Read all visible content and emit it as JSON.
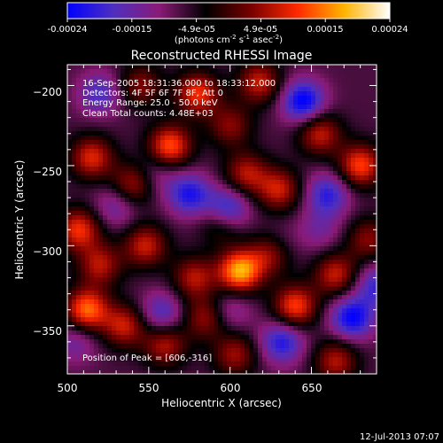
{
  "colorbar": {
    "ticks": [
      "-0.00024",
      "-0.00015",
      "-4.9e-05",
      "4.9e-05",
      "0.00015",
      "0.00024"
    ],
    "units_prefix": "(photons cm",
    "units_sup1": "-2",
    "units_mid1": " s",
    "units_sup2": "-1",
    "units_mid2": " asec",
    "units_sup3": "-2",
    "units_suffix": ")",
    "gradient": [
      "#0000ff",
      "#4f2fbf",
      "#8a1a76",
      "#000000",
      "#7a0000",
      "#ff2a00",
      "#ffb300",
      "#ffffff"
    ]
  },
  "title": "Reconstructed RHESSI Image",
  "info_lines": [
    "16-Sep-2005 18:31:36.000 to 18:33:12.000",
    "Detectors: 4F 5F 6F 7F 8F, Att 0",
    "Energy Range: 25.0 - 50.0 keV",
    "Clean    Total counts: 4.48E+03"
  ],
  "peak_label": "Position of Peak = [606,-316]",
  "footer_date": "12-Jul-2013 07:07",
  "chart_data": {
    "type": "heatmap",
    "title": "Reconstructed RHESSI Image",
    "xlabel": "Heliocentric X (arcsec)",
    "ylabel": "Heliocentric Y (arcsec)",
    "xlim": [
      500,
      690
    ],
    "ylim": [
      -380,
      -187
    ],
    "x_ticks": [
      500,
      550,
      600,
      650
    ],
    "y_ticks": [
      -200,
      -250,
      -300,
      -350
    ],
    "x_tick_labels": [
      "500",
      "550",
      "600",
      "650"
    ],
    "y_tick_labels": [
      "−200",
      "−250",
      "−300",
      "−350"
    ],
    "value_range": [
      -0.00024,
      0.00024
    ],
    "peak": [
      606,
      -316
    ],
    "blobs": [
      {
        "x": 606,
        "y": -316,
        "v": 1.0
      },
      {
        "x": 512,
        "y": -340,
        "v": 0.85
      },
      {
        "x": 535,
        "y": -350,
        "v": 0.6
      },
      {
        "x": 560,
        "y": -362,
        "v": 0.55
      },
      {
        "x": 548,
        "y": -300,
        "v": 0.6
      },
      {
        "x": 578,
        "y": -320,
        "v": 0.55
      },
      {
        "x": 585,
        "y": -345,
        "v": 0.5
      },
      {
        "x": 640,
        "y": -338,
        "v": 0.75
      },
      {
        "x": 625,
        "y": -305,
        "v": 0.55
      },
      {
        "x": 665,
        "y": -318,
        "v": 0.6
      },
      {
        "x": 685,
        "y": -296,
        "v": 0.45
      },
      {
        "x": 680,
        "y": -250,
        "v": 0.75
      },
      {
        "x": 655,
        "y": -230,
        "v": 0.6
      },
      {
        "x": 630,
        "y": -265,
        "v": 0.6
      },
      {
        "x": 610,
        "y": -255,
        "v": 0.55
      },
      {
        "x": 595,
        "y": -285,
        "v": 0.5
      },
      {
        "x": 563,
        "y": -238,
        "v": 0.8
      },
      {
        "x": 540,
        "y": -262,
        "v": 0.55
      },
      {
        "x": 515,
        "y": -245,
        "v": 0.65
      },
      {
        "x": 507,
        "y": -290,
        "v": 0.7
      },
      {
        "x": 520,
        "y": -312,
        "v": 0.55
      },
      {
        "x": 665,
        "y": -372,
        "v": 0.55
      },
      {
        "x": 603,
        "y": -368,
        "v": 0.5
      },
      {
        "x": 580,
        "y": -205,
        "v": 0.7
      },
      {
        "x": 600,
        "y": -225,
        "v": 0.45
      },
      {
        "x": 545,
        "y": -200,
        "v": 0.45
      },
      {
        "x": 618,
        "y": -198,
        "v": 0.6
      },
      {
        "x": 530,
        "y": -275,
        "v": -0.35
      },
      {
        "x": 575,
        "y": -268,
        "v": -0.6
      },
      {
        "x": 598,
        "y": -278,
        "v": -0.75
      },
      {
        "x": 600,
        "y": -340,
        "v": -0.3
      },
      {
        "x": 632,
        "y": -360,
        "v": -0.6
      },
      {
        "x": 675,
        "y": -345,
        "v": -0.7
      },
      {
        "x": 645,
        "y": -210,
        "v": -0.75
      },
      {
        "x": 660,
        "y": -268,
        "v": -0.55
      },
      {
        "x": 558,
        "y": -342,
        "v": -0.45
      },
      {
        "x": 520,
        "y": -205,
        "v": -0.45
      },
      {
        "x": 690,
        "y": -325,
        "v": -0.5
      },
      {
        "x": 630,
        "y": -300,
        "v": -0.2
      },
      {
        "x": 555,
        "y": -255,
        "v": -0.25
      },
      {
        "x": 505,
        "y": -360,
        "v": -0.3
      },
      {
        "x": 655,
        "y": -290,
        "v": -0.25
      }
    ]
  }
}
